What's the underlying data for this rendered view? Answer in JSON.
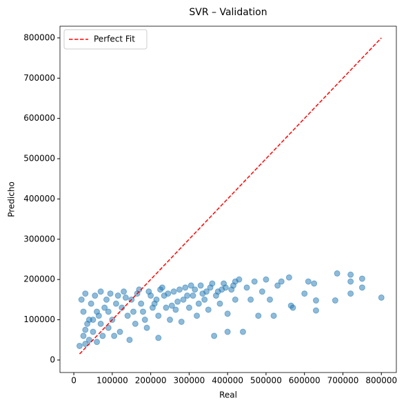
{
  "chart_data": {
    "type": "scatter",
    "title": "SVR – Validation",
    "xlabel": "Real",
    "ylabel": "Predicho",
    "xlim": [
      -36000,
      839000
    ],
    "ylim": [
      -31000,
      829000
    ],
    "xticks": [
      0,
      100000,
      200000,
      300000,
      400000,
      500000,
      600000,
      700000,
      800000
    ],
    "yticks": [
      0,
      100000,
      200000,
      300000,
      400000,
      500000,
      600000,
      700000,
      800000
    ],
    "legend": "upper left",
    "series": [
      {
        "color": "#1f77b4",
        "x": [
          15000,
          20000,
          25000,
          25000,
          30000,
          30000,
          35000,
          40000,
          45000,
          50000,
          55000,
          60000,
          65000,
          70000,
          75000,
          80000,
          90000,
          95000,
          100000,
          110000,
          120000,
          130000,
          140000,
          145000,
          150000,
          160000,
          170000,
          180000,
          190000,
          200000,
          210000,
          220000,
          220000,
          230000,
          240000,
          250000,
          260000,
          270000,
          280000,
          290000,
          300000,
          310000,
          320000,
          330000,
          340000,
          350000,
          360000,
          365000,
          370000,
          380000,
          390000,
          400000,
          400000,
          410000,
          420000,
          420000,
          430000,
          440000,
          450000,
          460000,
          470000,
          480000,
          490000,
          500000,
          510000,
          520000,
          530000,
          540000,
          560000,
          565000,
          570000,
          600000,
          610000,
          625000,
          630000,
          630000,
          680000,
          685000,
          720000,
          720000,
          720000,
          750000,
          750000,
          800000,
          40000,
          60000,
          85000,
          105000,
          125000,
          135000,
          155000,
          175000,
          195000,
          215000,
          235000,
          255000,
          275000,
          295000,
          315000,
          335000,
          355000,
          375000,
          395000,
          415000,
          30000,
          50000,
          70000,
          90000,
          115000,
          165000,
          185000,
          205000,
          225000,
          245000,
          265000,
          285000,
          305000,
          325000,
          345000,
          385000
        ],
        "y": [
          35000,
          150000,
          60000,
          120000,
          40000,
          165000,
          90000,
          50000,
          140000,
          70000,
          160000,
          45000,
          110000,
          170000,
          60000,
          130000,
          80000,
          165000,
          100000,
          140000,
          70000,
          170000,
          110000,
          50000,
          150000,
          90000,
          175000,
          120000,
          80000,
          160000,
          140000,
          55000,
          110000,
          180000,
          130000,
          100000,
          170000,
          145000,
          95000,
          180000,
          130000,
          160000,
          110000,
          185000,
          150000,
          125000,
          190000,
          60000,
          160000,
          140000,
          190000,
          115000,
          70000,
          175000,
          150000,
          195000,
          200000,
          70000,
          180000,
          150000,
          195000,
          110000,
          170000,
          200000,
          150000,
          110000,
          185000,
          195000,
          205000,
          135000,
          130000,
          165000,
          195000,
          190000,
          148000,
          123000,
          148000,
          215000,
          212000,
          195000,
          165000,
          202000,
          180000,
          155000,
          100000,
          120000,
          150000,
          60000,
          130000,
          155000,
          120000,
          140000,
          170000,
          150000,
          160000,
          135000,
          175000,
          160000,
          175000,
          165000,
          180000,
          170000,
          180000,
          185000,
          75000,
          100000,
          90000,
          120000,
          160000,
          165000,
          100000,
          130000,
          175000,
          165000,
          125000,
          150000,
          185000,
          140000,
          170000,
          175000
        ]
      },
      {
        "name": "Perfect Fit",
        "color": "#ff0000",
        "x": [
          15000,
          800000
        ],
        "y": [
          15000,
          800000
        ]
      }
    ]
  }
}
